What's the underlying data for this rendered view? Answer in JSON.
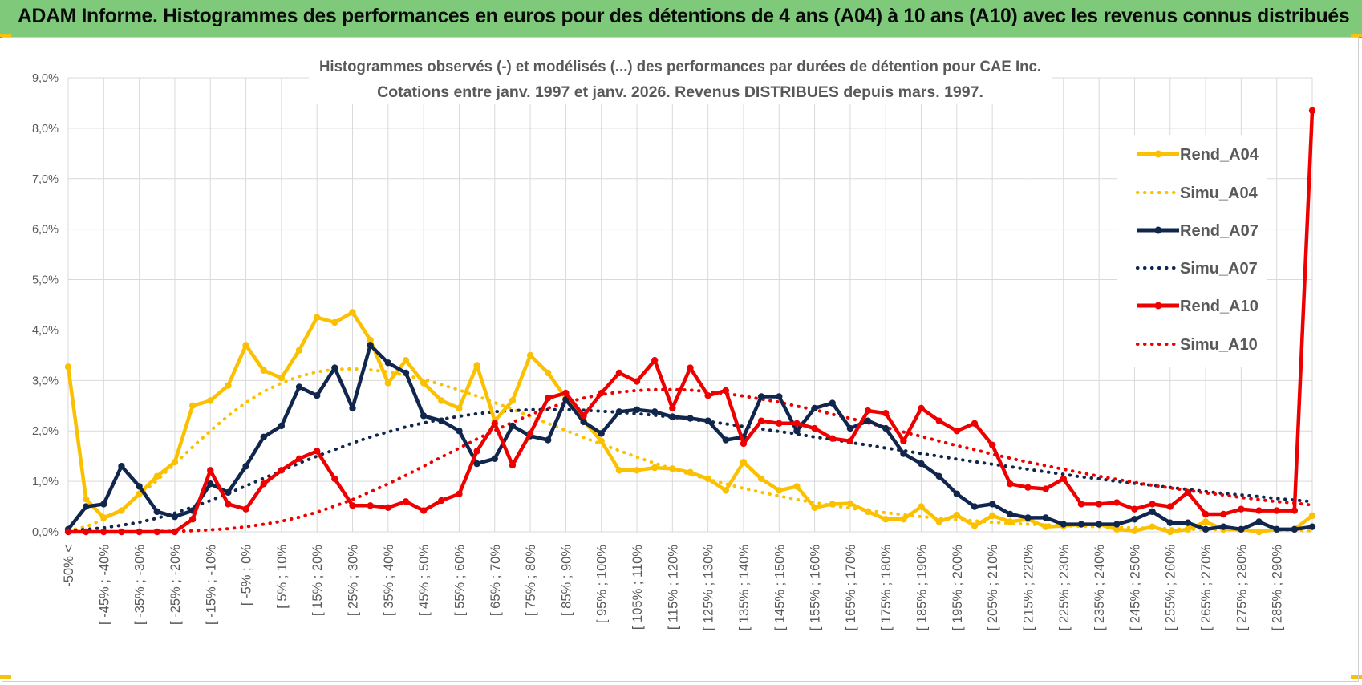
{
  "banner": {
    "title": "ADAM Informe. Histogrammes des performances en euros pour des détentions de 4 ans (A04) à 10 ans (A10) avec les revenus connus distribués"
  },
  "colors": {
    "banner_bg": "#7ec97a",
    "A04": "#fbc000",
    "A07": "#11264d",
    "A10": "#ee0000",
    "grid": "#d9d9d9",
    "text": "#595959"
  },
  "chart_data": {
    "type": "line",
    "title": "Histogrammes observés (-) et modélisés (...) des performances par durées de détention pour CAE Inc.",
    "subtitle": "Cotations entre janv. 1997 et janv. 2026. Revenus DISTRIBUES depuis mars. 1997.",
    "xlabel": "",
    "ylabel": "",
    "ylim": [
      0,
      9
    ],
    "yticks": [
      "0,0%",
      "1,0%",
      "2,0%",
      "3,0%",
      "4,0%",
      "5,0%",
      "6,0%",
      "7,0%",
      "8,0%",
      "9,0%"
    ],
    "grid": true,
    "legend_position": "right",
    "x_tick_labels": [
      "-50% <",
      "[ -45% ; -40%",
      "[ -35% ; -30%",
      "[ -25% ; -20%",
      "[ -15% ; -10%",
      "[ -5% ; 0%",
      "[ 5% ; 10%",
      "[ 15% ; 20%",
      "[ 25% ; 30%",
      "[ 35% ; 40%",
      "[ 45% ; 50%",
      "[ 55% ; 60%",
      "[ 65% ; 70%",
      "[ 75% ; 80%",
      "[ 85% ; 90%",
      "[ 95% ; 100%",
      "[ 105% ; 110%",
      "[ 115% ; 120%",
      "[ 125% ; 130%",
      "[ 135% ; 140%",
      "[ 145% ; 150%",
      "[ 155% ; 160%",
      "[ 165% ; 170%",
      "[ 175% ; 180%",
      "[ 185% ; 190%",
      "[ 195% ; 200%",
      "[ 205% ; 210%",
      "[ 215% ; 220%",
      "[ 225% ; 230%",
      "[ 235% ; 240%",
      "[ 245% ; 250%",
      "[ 255% ; 260%",
      "[ 265% ; 270%",
      "[ 275% ; 280%",
      "[ 285% ; 290%"
    ],
    "series": [
      {
        "name": "Rend_A04",
        "style": "solid",
        "color": "#fbc000",
        "values": [
          3.27,
          0.65,
          0.28,
          0.42,
          0.75,
          1.1,
          1.38,
          2.5,
          2.6,
          2.9,
          3.7,
          3.2,
          3.05,
          3.6,
          4.25,
          4.15,
          4.35,
          3.8,
          2.95,
          3.4,
          2.95,
          2.6,
          2.45,
          3.3,
          2.2,
          2.6,
          3.5,
          3.15,
          2.65,
          2.2,
          1.8,
          1.22,
          1.22,
          1.27,
          1.25,
          1.18,
          1.05,
          0.82,
          1.38,
          1.05,
          0.82,
          0.9,
          0.48,
          0.55,
          0.56,
          0.4,
          0.25,
          0.25,
          0.5,
          0.2,
          0.33,
          0.12,
          0.32,
          0.2,
          0.25,
          0.1,
          0.12,
          0.15,
          0.15,
          0.05,
          0.02,
          0.1,
          0.0,
          0.05,
          0.2,
          0.05,
          0.05,
          0.0,
          0.05,
          0.05,
          0.32
        ]
      },
      {
        "name": "Simu_A04",
        "style": "dotted",
        "color": "#fbc000",
        "values": [
          0.02,
          0.1,
          0.25,
          0.45,
          0.72,
          1.02,
          1.35,
          1.68,
          2.0,
          2.3,
          2.56,
          2.78,
          2.95,
          3.08,
          3.17,
          3.22,
          3.23,
          3.21,
          3.17,
          3.1,
          3.02,
          2.92,
          2.81,
          2.69,
          2.56,
          2.43,
          2.29,
          2.15,
          2.01,
          1.87,
          1.74,
          1.61,
          1.48,
          1.36,
          1.25,
          1.14,
          1.04,
          0.95,
          0.86,
          0.78,
          0.71,
          0.64,
          0.58,
          0.52,
          0.47,
          0.42,
          0.38,
          0.34,
          0.3,
          0.27,
          0.24,
          0.22,
          0.19,
          0.17,
          0.15,
          0.14,
          0.12,
          0.11,
          0.1,
          0.09,
          0.08,
          0.07,
          0.06,
          0.05,
          0.05,
          0.04,
          0.04,
          0.03,
          0.03,
          0.03,
          0.02
        ]
      },
      {
        "name": "Rend_A07",
        "style": "solid",
        "color": "#11264d",
        "values": [
          0.05,
          0.5,
          0.55,
          1.3,
          0.9,
          0.4,
          0.3,
          0.42,
          0.95,
          0.78,
          1.3,
          1.88,
          2.1,
          2.87,
          2.7,
          3.25,
          2.45,
          3.7,
          3.35,
          3.15,
          2.3,
          2.2,
          2.0,
          1.35,
          1.45,
          2.1,
          1.9,
          1.82,
          2.62,
          2.18,
          1.95,
          2.38,
          2.42,
          2.38,
          2.28,
          2.25,
          2.2,
          1.82,
          1.88,
          2.68,
          2.68,
          2.0,
          2.45,
          2.55,
          2.05,
          2.2,
          2.05,
          1.55,
          1.35,
          1.1,
          0.75,
          0.5,
          0.55,
          0.35,
          0.28,
          0.28,
          0.15,
          0.15,
          0.15,
          0.15,
          0.25,
          0.4,
          0.18,
          0.18,
          0.05,
          0.1,
          0.05,
          0.2,
          0.05,
          0.05,
          0.1
        ]
      },
      {
        "name": "Simu_A07",
        "style": "dotted",
        "color": "#11264d",
        "values": [
          0.02,
          0.05,
          0.08,
          0.13,
          0.19,
          0.27,
          0.37,
          0.49,
          0.62,
          0.76,
          0.91,
          1.06,
          1.21,
          1.36,
          1.5,
          1.63,
          1.76,
          1.88,
          1.98,
          2.08,
          2.16,
          2.23,
          2.29,
          2.34,
          2.38,
          2.4,
          2.42,
          2.42,
          2.42,
          2.41,
          2.39,
          2.37,
          2.34,
          2.31,
          2.27,
          2.23,
          2.19,
          2.14,
          2.09,
          2.04,
          1.99,
          1.94,
          1.88,
          1.83,
          1.77,
          1.72,
          1.66,
          1.61,
          1.55,
          1.5,
          1.44,
          1.39,
          1.34,
          1.29,
          1.24,
          1.19,
          1.14,
          1.09,
          1.05,
          1.0,
          0.96,
          0.92,
          0.88,
          0.84,
          0.8,
          0.76,
          0.73,
          0.7,
          0.66,
          0.63,
          0.6
        ]
      },
      {
        "name": "Rend_A10",
        "style": "solid",
        "color": "#ee0000",
        "values": [
          0.0,
          0.0,
          0.0,
          0.0,
          0.0,
          0.0,
          0.0,
          0.25,
          1.22,
          0.55,
          0.45,
          0.95,
          1.22,
          1.45,
          1.6,
          1.05,
          0.52,
          0.52,
          0.48,
          0.6,
          0.42,
          0.62,
          0.75,
          1.6,
          2.15,
          1.32,
          1.95,
          2.65,
          2.75,
          2.3,
          2.75,
          3.15,
          2.98,
          3.4,
          2.45,
          3.25,
          2.7,
          2.8,
          1.75,
          2.2,
          2.15,
          2.15,
          2.05,
          1.85,
          1.8,
          2.4,
          2.35,
          1.8,
          2.45,
          2.2,
          2.0,
          2.15,
          1.72,
          0.95,
          0.88,
          0.85,
          1.05,
          0.55,
          0.55,
          0.58,
          0.45,
          0.55,
          0.5,
          0.78,
          0.35,
          0.35,
          0.45,
          0.42,
          0.42,
          0.42,
          8.35
        ]
      },
      {
        "name": "Simu_A10",
        "style": "dotted",
        "color": "#ee0000",
        "values": [
          0.0,
          0.0,
          0.0,
          0.0,
          0.0,
          0.01,
          0.01,
          0.02,
          0.04,
          0.06,
          0.1,
          0.15,
          0.21,
          0.29,
          0.39,
          0.51,
          0.64,
          0.79,
          0.95,
          1.12,
          1.3,
          1.48,
          1.66,
          1.84,
          2.01,
          2.17,
          2.32,
          2.45,
          2.56,
          2.65,
          2.72,
          2.77,
          2.8,
          2.82,
          2.82,
          2.81,
          2.78,
          2.74,
          2.69,
          2.63,
          2.57,
          2.49,
          2.42,
          2.33,
          2.25,
          2.16,
          2.07,
          1.98,
          1.89,
          1.8,
          1.71,
          1.63,
          1.54,
          1.46,
          1.38,
          1.31,
          1.24,
          1.17,
          1.1,
          1.04,
          0.98,
          0.92,
          0.87,
          0.82,
          0.77,
          0.73,
          0.68,
          0.64,
          0.6,
          0.57,
          0.53
        ]
      }
    ]
  }
}
